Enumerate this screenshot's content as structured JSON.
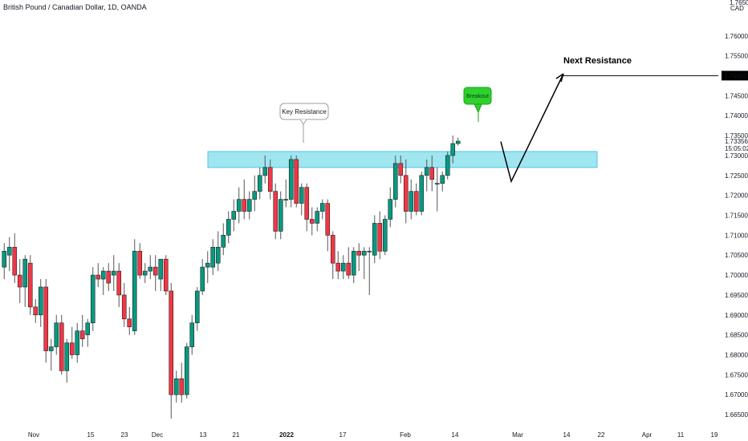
{
  "header": {
    "symbol_title": "British Pound / Canadian Dollar, 1D, OANDA",
    "currency_label": "CAD"
  },
  "chart_data": {
    "type": "candlestick",
    "title": "British Pound / Canadian Dollar, 1D, OANDA",
    "y_axis": {
      "min": 1.662,
      "max": 1.768,
      "ticks": [
        "1.76000",
        "1.75500",
        "1.75000",
        "1.74500",
        "1.74000",
        "1.73500",
        "1.73000",
        "1.72500",
        "1.72000",
        "1.71500",
        "1.71000",
        "1.70500",
        "1.70000",
        "1.69500",
        "1.69000",
        "1.68500",
        "1.68000",
        "1.67500",
        "1.67000",
        "1.66500"
      ],
      "top_tick_partial": "1.76500",
      "labels": {
        "next_resistance_price": "1.75003",
        "last_price": "1.73356",
        "countdown": "15:05:02"
      }
    },
    "x_axis": {
      "ticks": [
        "Nov",
        "15",
        "23",
        "Dec",
        "13",
        "21",
        "2022",
        "17",
        "Feb",
        "14",
        "Mar",
        "14",
        "22",
        "Apr",
        "11",
        "19"
      ]
    },
    "candles": [
      {
        "o": 1.702,
        "h": 1.708,
        "l": 1.699,
        "c": 1.706
      },
      {
        "o": 1.705,
        "h": 1.7095,
        "l": 1.701,
        "c": 1.707
      },
      {
        "o": 1.707,
        "h": 1.7105,
        "l": 1.698,
        "c": 1.7
      },
      {
        "o": 1.7,
        "h": 1.704,
        "l": 1.693,
        "c": 1.697
      },
      {
        "o": 1.697,
        "h": 1.705,
        "l": 1.692,
        "c": 1.704
      },
      {
        "o": 1.703,
        "h": 1.705,
        "l": 1.69,
        "c": 1.692
      },
      {
        "o": 1.692,
        "h": 1.694,
        "l": 1.688,
        "c": 1.69
      },
      {
        "o": 1.69,
        "h": 1.699,
        "l": 1.687,
        "c": 1.697
      },
      {
        "o": 1.697,
        "h": 1.699,
        "l": 1.678,
        "c": 1.681
      },
      {
        "o": 1.681,
        "h": 1.684,
        "l": 1.676,
        "c": 1.682
      },
      {
        "o": 1.682,
        "h": 1.69,
        "l": 1.68,
        "c": 1.688
      },
      {
        "o": 1.688,
        "h": 1.69,
        "l": 1.675,
        "c": 1.676
      },
      {
        "o": 1.676,
        "h": 1.684,
        "l": 1.673,
        "c": 1.683
      },
      {
        "o": 1.683,
        "h": 1.687,
        "l": 1.679,
        "c": 1.68
      },
      {
        "o": 1.68,
        "h": 1.688,
        "l": 1.678,
        "c": 1.686
      },
      {
        "o": 1.686,
        "h": 1.69,
        "l": 1.682,
        "c": 1.684
      },
      {
        "o": 1.685,
        "h": 1.689,
        "l": 1.682,
        "c": 1.688
      },
      {
        "o": 1.688,
        "h": 1.702,
        "l": 1.686,
        "c": 1.7
      },
      {
        "o": 1.7,
        "h": 1.703,
        "l": 1.697,
        "c": 1.699
      },
      {
        "o": 1.699,
        "h": 1.702,
        "l": 1.695,
        "c": 1.701
      },
      {
        "o": 1.701,
        "h": 1.703,
        "l": 1.696,
        "c": 1.698
      },
      {
        "o": 1.7,
        "h": 1.705,
        "l": 1.696,
        "c": 1.701
      },
      {
        "o": 1.701,
        "h": 1.703,
        "l": 1.692,
        "c": 1.695
      },
      {
        "o": 1.695,
        "h": 1.698,
        "l": 1.687,
        "c": 1.689
      },
      {
        "o": 1.689,
        "h": 1.692,
        "l": 1.685,
        "c": 1.687
      },
      {
        "o": 1.686,
        "h": 1.709,
        "l": 1.685,
        "c": 1.706
      },
      {
        "o": 1.706,
        "h": 1.708,
        "l": 1.699,
        "c": 1.7
      },
      {
        "o": 1.7,
        "h": 1.703,
        "l": 1.698,
        "c": 1.701
      },
      {
        "o": 1.701,
        "h": 1.705,
        "l": 1.699,
        "c": 1.702
      },
      {
        "o": 1.702,
        "h": 1.705,
        "l": 1.696,
        "c": 1.7
      },
      {
        "o": 1.699,
        "h": 1.704,
        "l": 1.696,
        "c": 1.704
      },
      {
        "o": 1.704,
        "h": 1.705,
        "l": 1.695,
        "c": 1.696
      },
      {
        "o": 1.696,
        "h": 1.698,
        "l": 1.664,
        "c": 1.67
      },
      {
        "o": 1.67,
        "h": 1.676,
        "l": 1.668,
        "c": 1.674
      },
      {
        "o": 1.674,
        "h": 1.678,
        "l": 1.668,
        "c": 1.67
      },
      {
        "o": 1.67,
        "h": 1.683,
        "l": 1.669,
        "c": 1.682
      },
      {
        "o": 1.682,
        "h": 1.69,
        "l": 1.68,
        "c": 1.688
      },
      {
        "o": 1.688,
        "h": 1.697,
        "l": 1.686,
        "c": 1.696
      },
      {
        "o": 1.696,
        "h": 1.704,
        "l": 1.695,
        "c": 1.702
      },
      {
        "o": 1.702,
        "h": 1.706,
        "l": 1.698,
        "c": 1.703
      },
      {
        "o": 1.702,
        "h": 1.709,
        "l": 1.7,
        "c": 1.707
      },
      {
        "o": 1.703,
        "h": 1.711,
        "l": 1.701,
        "c": 1.707
      },
      {
        "o": 1.707,
        "h": 1.713,
        "l": 1.705,
        "c": 1.71
      },
      {
        "o": 1.71,
        "h": 1.716,
        "l": 1.708,
        "c": 1.714
      },
      {
        "o": 1.714,
        "h": 1.719,
        "l": 1.711,
        "c": 1.716
      },
      {
        "o": 1.716,
        "h": 1.722,
        "l": 1.713,
        "c": 1.719
      },
      {
        "o": 1.719,
        "h": 1.724,
        "l": 1.714,
        "c": 1.716
      },
      {
        "o": 1.716,
        "h": 1.721,
        "l": 1.714,
        "c": 1.719
      },
      {
        "o": 1.719,
        "h": 1.725,
        "l": 1.716,
        "c": 1.721
      },
      {
        "o": 1.721,
        "h": 1.727,
        "l": 1.719,
        "c": 1.725
      },
      {
        "o": 1.725,
        "h": 1.73,
        "l": 1.723,
        "c": 1.727
      },
      {
        "o": 1.727,
        "h": 1.729,
        "l": 1.719,
        "c": 1.721
      },
      {
        "o": 1.721,
        "h": 1.723,
        "l": 1.709,
        "c": 1.711
      },
      {
        "o": 1.711,
        "h": 1.721,
        "l": 1.709,
        "c": 1.719
      },
      {
        "o": 1.719,
        "h": 1.724,
        "l": 1.717,
        "c": 1.719
      },
      {
        "o": 1.719,
        "h": 1.73,
        "l": 1.717,
        "c": 1.729
      },
      {
        "o": 1.729,
        "h": 1.73,
        "l": 1.717,
        "c": 1.718
      },
      {
        "o": 1.718,
        "h": 1.723,
        "l": 1.715,
        "c": 1.722
      },
      {
        "o": 1.722,
        "h": 1.723,
        "l": 1.711,
        "c": 1.714
      },
      {
        "o": 1.714,
        "h": 1.717,
        "l": 1.71,
        "c": 1.713
      },
      {
        "o": 1.713,
        "h": 1.717,
        "l": 1.711,
        "c": 1.716
      },
      {
        "o": 1.716,
        "h": 1.719,
        "l": 1.714,
        "c": 1.718
      },
      {
        "o": 1.718,
        "h": 1.719,
        "l": 1.706,
        "c": 1.71
      },
      {
        "o": 1.71,
        "h": 1.711,
        "l": 1.699,
        "c": 1.703
      },
      {
        "o": 1.703,
        "h": 1.706,
        "l": 1.699,
        "c": 1.701
      },
      {
        "o": 1.701,
        "h": 1.705,
        "l": 1.699,
        "c": 1.703
      },
      {
        "o": 1.703,
        "h": 1.707,
        "l": 1.699,
        "c": 1.7
      },
      {
        "o": 1.7,
        "h": 1.707,
        "l": 1.698,
        "c": 1.706
      },
      {
        "o": 1.706,
        "h": 1.708,
        "l": 1.701,
        "c": 1.705
      },
      {
        "o": 1.705,
        "h": 1.707,
        "l": 1.699,
        "c": 1.706
      },
      {
        "o": 1.706,
        "h": 1.707,
        "l": 1.695,
        "c": 1.706
      },
      {
        "o": 1.705,
        "h": 1.715,
        "l": 1.703,
        "c": 1.713
      },
      {
        "o": 1.713,
        "h": 1.716,
        "l": 1.704,
        "c": 1.706
      },
      {
        "o": 1.706,
        "h": 1.715,
        "l": 1.705,
        "c": 1.714
      },
      {
        "o": 1.714,
        "h": 1.722,
        "l": 1.712,
        "c": 1.719
      },
      {
        "o": 1.719,
        "h": 1.73,
        "l": 1.717,
        "c": 1.728
      },
      {
        "o": 1.728,
        "h": 1.73,
        "l": 1.723,
        "c": 1.725
      },
      {
        "o": 1.725,
        "h": 1.729,
        "l": 1.713,
        "c": 1.716
      },
      {
        "o": 1.716,
        "h": 1.724,
        "l": 1.714,
        "c": 1.721
      },
      {
        "o": 1.721,
        "h": 1.723,
        "l": 1.715,
        "c": 1.716
      },
      {
        "o": 1.716,
        "h": 1.726,
        "l": 1.715,
        "c": 1.725
      },
      {
        "o": 1.725,
        "h": 1.729,
        "l": 1.721,
        "c": 1.727
      },
      {
        "o": 1.727,
        "h": 1.73,
        "l": 1.721,
        "c": 1.724
      },
      {
        "o": 1.723,
        "h": 1.727,
        "l": 1.716,
        "c": 1.723
      },
      {
        "o": 1.723,
        "h": 1.726,
        "l": 1.721,
        "c": 1.725
      },
      {
        "o": 1.725,
        "h": 1.731,
        "l": 1.724,
        "c": 1.73
      },
      {
        "o": 1.73,
        "h": 1.735,
        "l": 1.728,
        "c": 1.733
      },
      {
        "o": 1.733,
        "h": 1.7345,
        "l": 1.7325,
        "c": 1.7336
      }
    ],
    "zones": [
      {
        "label": "",
        "from": 1.727,
        "to": 1.731,
        "color": "#80deea"
      }
    ],
    "annotations": {
      "key_resistance": "Key Resistance",
      "breakout": "Breakout",
      "next_resistance": "Next Resistance"
    },
    "projection": [
      {
        "bar": 86,
        "price": 1.7335
      },
      {
        "bar": 88,
        "price": 1.7235
      },
      {
        "bar": 94,
        "price": 1.7505
      }
    ],
    "next_resistance_level": 1.75003,
    "colors": {
      "up": "#089981",
      "down": "#f23645",
      "wick": "#555555",
      "zone": "#80deea",
      "breakout_bubble": "#2ed12e",
      "last_price": "#089981"
    }
  }
}
